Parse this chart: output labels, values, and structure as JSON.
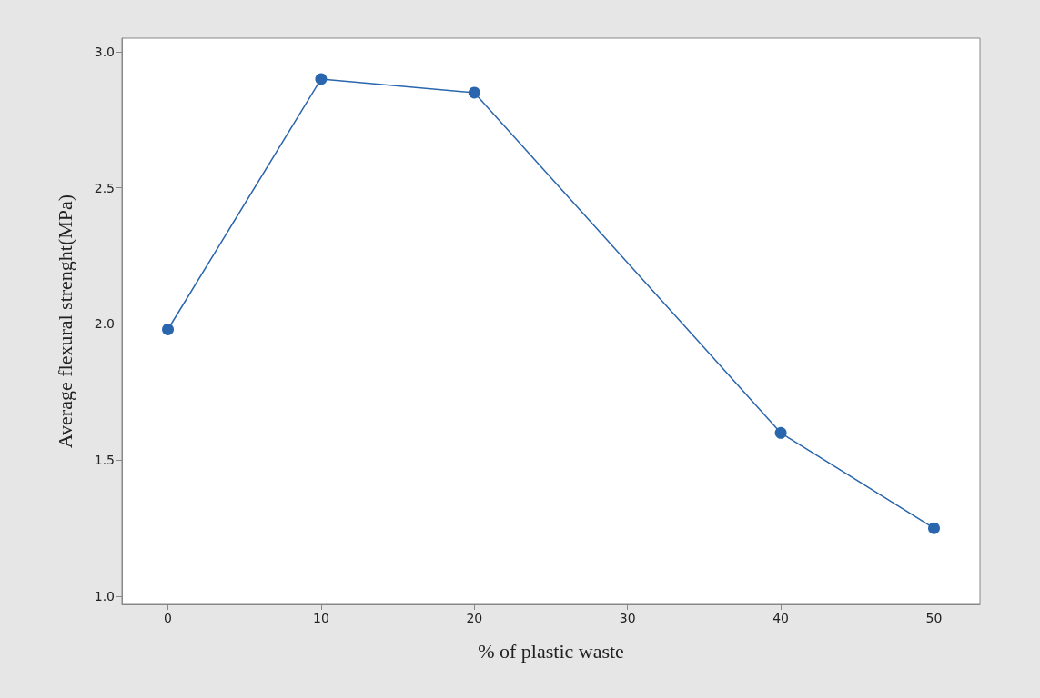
{
  "chart_data": {
    "type": "line",
    "xlabel": "% of plastic waste",
    "ylabel": "Average flexural strenght(MPa)",
    "x": [
      0,
      10,
      20,
      40,
      50
    ],
    "series": [
      {
        "color": "#2a66ad",
        "values": [
          1.98,
          2.9,
          2.85,
          1.6,
          1.25
        ]
      }
    ],
    "xlim": [
      -3,
      53
    ],
    "xticks": [
      0,
      10,
      20,
      30,
      40,
      50
    ],
    "ylim": [
      0.97,
      3.05
    ],
    "yticks": [
      {
        "value": 1,
        "label": "1.0"
      },
      {
        "value": 1.5,
        "label": "1.5"
      },
      {
        "value": 2,
        "label": "2.0"
      },
      {
        "value": 2.5,
        "label": "2.5"
      },
      {
        "value": 3,
        "label": "3.0"
      }
    ],
    "grid": false,
    "marker": "circle",
    "line_style": "solid"
  }
}
